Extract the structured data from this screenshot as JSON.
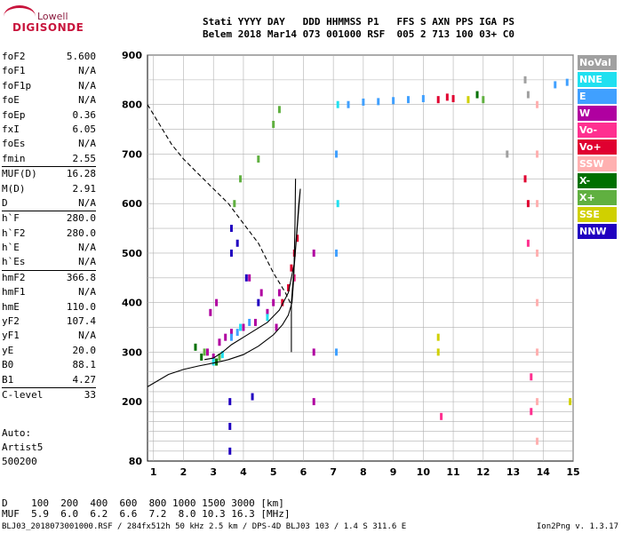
{
  "logo": {
    "line1": "Lowell",
    "line2": "DIGISONDE"
  },
  "header": {
    "line1": "Stati YYYY DAY   DDD HHMMSS P1   FFS S AXN PPS IGA PS",
    "line2": "Belem 2018 Mar14 073 001000 RSF  005 2 713 100 03+ C0"
  },
  "params": [
    {
      "name": "foF2",
      "value": "5.600"
    },
    {
      "name": "foF1",
      "value": "N/A"
    },
    {
      "name": "foF1p",
      "value": "N/A"
    },
    {
      "name": "foE",
      "value": "N/A"
    },
    {
      "name": "foEp",
      "value": "0.36"
    },
    {
      "name": "fxI",
      "value": "6.05"
    },
    {
      "name": "foEs",
      "value": "N/A"
    },
    {
      "name": "fmin",
      "value": "2.55"
    },
    {
      "name": "MUF(D)",
      "value": "16.28",
      "sep": true
    },
    {
      "name": "M(D)",
      "value": "2.91"
    },
    {
      "name": "D",
      "value": "N/A"
    },
    {
      "name": "h`F",
      "value": "280.0",
      "sep": true
    },
    {
      "name": "h`F2",
      "value": "280.0"
    },
    {
      "name": "h`E",
      "value": "N/A"
    },
    {
      "name": "h`Es",
      "value": "N/A"
    },
    {
      "name": "hmF2",
      "value": "366.8",
      "sep": true
    },
    {
      "name": "hmF1",
      "value": "N/A"
    },
    {
      "name": "hmE",
      "value": "110.0"
    },
    {
      "name": "yF2",
      "value": "107.4"
    },
    {
      "name": "yF1",
      "value": "N/A"
    },
    {
      "name": "yE",
      "value": "20.0"
    },
    {
      "name": "B0",
      "value": "88.1"
    },
    {
      "name": "B1",
      "value": "4.27"
    },
    {
      "name": "C-level",
      "value": "33",
      "sep": true
    }
  ],
  "auto": {
    "line1": "Auto:",
    "line2": "Artist5",
    "line3": "500200"
  },
  "legend": [
    {
      "label": "NoVal",
      "color": "#a0a0a0"
    },
    {
      "label": "NNE",
      "color": "#20e0f0"
    },
    {
      "label": "E",
      "color": "#40a0ff"
    },
    {
      "label": "W",
      "color": "#b000a0"
    },
    {
      "label": "Vo-",
      "color": "#ff3090"
    },
    {
      "label": "Vo+",
      "color": "#e00030"
    },
    {
      "label": "SSW",
      "color": "#ffb0b0"
    },
    {
      "label": "X-",
      "color": "#007000"
    },
    {
      "label": "X+",
      "color": "#60b040"
    },
    {
      "label": "SSE",
      "color": "#d0d000"
    },
    {
      "label": "NNW",
      "color": "#2000c0"
    }
  ],
  "bottom": {
    "d_line": "D    100  200  400  600  800 1000 1500 3000 [km]",
    "muf_line": "MUF  5.9  6.0  6.2  6.6  7.2  8.0 10.3 16.3 [MHz]",
    "footer": "BLJ03_2018073001000.RSF / 284fx512h 50 kHz 2.5 km / DPS-4D BLJ03 103 / 1.4 S 311.6 E",
    "version": "Ion2Png v. 1.3.17"
  },
  "chart_data": {
    "type": "scatter",
    "title": "",
    "xlabel": "",
    "ylabel": "",
    "xlim": [
      0.8,
      15
    ],
    "ylim": [
      80,
      900
    ],
    "xticks": [
      1,
      2,
      3,
      4,
      5,
      6,
      7,
      8,
      9,
      10,
      11,
      12,
      13,
      14,
      15
    ],
    "yticks": [
      80,
      200,
      300,
      400,
      500,
      600,
      700,
      800,
      900
    ],
    "grid": true,
    "gridlines_y": [
      100,
      120,
      140,
      160,
      180,
      200,
      220,
      240,
      260,
      280,
      300,
      350,
      400,
      450,
      500,
      550,
      600,
      650,
      700,
      750,
      800,
      850,
      900
    ],
    "series": [
      {
        "name": "W",
        "color": "#b000a0",
        "points": [
          [
            2.8,
            300
          ],
          [
            3.0,
            290
          ],
          [
            3.2,
            320
          ],
          [
            3.4,
            330
          ],
          [
            3.6,
            340
          ],
          [
            4.0,
            350
          ],
          [
            4.4,
            360
          ],
          [
            4.8,
            380
          ],
          [
            5.0,
            400
          ],
          [
            5.2,
            420
          ],
          [
            2.9,
            380
          ],
          [
            3.1,
            400
          ],
          [
            4.2,
            450
          ],
          [
            4.6,
            420
          ],
          [
            5.1,
            350
          ],
          [
            6.35,
            500
          ],
          [
            6.35,
            300
          ],
          [
            6.35,
            200
          ]
        ]
      },
      {
        "name": "Vo+",
        "color": "#e00030",
        "points": [
          [
            5.3,
            400
          ],
          [
            5.5,
            430
          ],
          [
            5.6,
            470
          ],
          [
            5.7,
            500
          ],
          [
            5.8,
            530
          ],
          [
            10.5,
            810
          ],
          [
            10.8,
            815
          ],
          [
            11.0,
            812
          ],
          [
            13.4,
            650
          ],
          [
            13.5,
            600
          ]
        ]
      },
      {
        "name": "E",
        "color": "#40a0ff",
        "points": [
          [
            7.5,
            800
          ],
          [
            8.0,
            805
          ],
          [
            8.5,
            806
          ],
          [
            9.0,
            808
          ],
          [
            9.5,
            810
          ],
          [
            10.0,
            812
          ],
          [
            3.6,
            330
          ],
          [
            3.8,
            340
          ],
          [
            4.2,
            360
          ],
          [
            7.1,
            700
          ],
          [
            7.1,
            500
          ],
          [
            7.1,
            300
          ],
          [
            14.4,
            840
          ],
          [
            14.8,
            845
          ]
        ]
      },
      {
        "name": "NNE",
        "color": "#20e0f0",
        "points": [
          [
            3.0,
            280
          ],
          [
            3.3,
            295
          ],
          [
            3.9,
            350
          ],
          [
            4.8,
            370
          ],
          [
            7.15,
            800
          ],
          [
            7.15,
            600
          ]
        ]
      },
      {
        "name": "X+",
        "color": "#60b040",
        "points": [
          [
            2.7,
            300
          ],
          [
            3.2,
            290
          ],
          [
            3.7,
            600
          ],
          [
            3.9,
            650
          ],
          [
            4.5,
            690
          ],
          [
            5.0,
            760
          ],
          [
            5.2,
            790
          ],
          [
            12.0,
            810
          ]
        ]
      },
      {
        "name": "NNW",
        "color": "#2000c0",
        "points": [
          [
            3.55,
            200
          ],
          [
            3.55,
            150
          ],
          [
            3.55,
            100
          ],
          [
            3.6,
            500
          ],
          [
            3.6,
            550
          ],
          [
            3.8,
            520
          ],
          [
            4.1,
            450
          ],
          [
            4.3,
            210
          ],
          [
            4.5,
            400
          ]
        ]
      },
      {
        "name": "SSW",
        "color": "#ffb0b0",
        "points": [
          [
            13.8,
            800
          ],
          [
            13.8,
            700
          ],
          [
            13.8,
            600
          ],
          [
            13.8,
            500
          ],
          [
            13.8,
            400
          ],
          [
            13.8,
            300
          ],
          [
            13.8,
            200
          ],
          [
            13.8,
            120
          ]
        ]
      },
      {
        "name": "SSE",
        "color": "#d0d000",
        "points": [
          [
            10.5,
            330
          ],
          [
            10.5,
            300
          ],
          [
            11.5,
            810
          ],
          [
            14.9,
            200
          ]
        ]
      },
      {
        "name": "X-",
        "color": "#007000",
        "points": [
          [
            2.4,
            310
          ],
          [
            2.6,
            290
          ],
          [
            3.1,
            280
          ],
          [
            11.8,
            820
          ]
        ]
      },
      {
        "name": "Vo-",
        "color": "#ff3090",
        "points": [
          [
            13.5,
            520
          ],
          [
            13.6,
            250
          ],
          [
            13.6,
            180
          ],
          [
            10.6,
            170
          ],
          [
            5.7,
            450
          ]
        ]
      },
      {
        "name": "NoVal",
        "color": "#a0a0a0",
        "points": [
          [
            13.4,
            850
          ],
          [
            13.5,
            820
          ],
          [
            12.8,
            700
          ]
        ]
      }
    ],
    "curves": [
      {
        "name": "profile",
        "style": "solid",
        "points": [
          [
            0.8,
            230
          ],
          [
            1.5,
            255
          ],
          [
            2.0,
            265
          ],
          [
            2.5,
            272
          ],
          [
            3.0,
            278
          ],
          [
            3.5,
            285
          ],
          [
            4.0,
            295
          ],
          [
            4.5,
            312
          ],
          [
            5.0,
            335
          ],
          [
            5.3,
            355
          ],
          [
            5.5,
            375
          ],
          [
            5.62,
            400
          ],
          [
            5.68,
            450
          ],
          [
            5.7,
            500
          ],
          [
            5.72,
            560
          ],
          [
            5.74,
            650
          ]
        ]
      },
      {
        "name": "trace",
        "style": "solid",
        "points": [
          [
            2.7,
            285
          ],
          [
            3.0,
            288
          ],
          [
            3.3,
            300
          ],
          [
            3.6,
            315
          ],
          [
            4.0,
            330
          ],
          [
            4.4,
            345
          ],
          [
            4.8,
            360
          ],
          [
            5.2,
            385
          ],
          [
            5.5,
            420
          ],
          [
            5.7,
            480
          ],
          [
            5.8,
            560
          ],
          [
            5.85,
            600
          ],
          [
            5.9,
            630
          ],
          [
            5.6,
            400
          ],
          [
            5.6,
            300
          ]
        ]
      },
      {
        "name": "muf",
        "style": "dashed",
        "points": [
          [
            0.8,
            800
          ],
          [
            1.2,
            760
          ],
          [
            1.6,
            720
          ],
          [
            2.0,
            690
          ],
          [
            2.5,
            660
          ],
          [
            3.0,
            630
          ],
          [
            3.5,
            600
          ],
          [
            4.0,
            560
          ],
          [
            4.5,
            520
          ],
          [
            5.0,
            460
          ],
          [
            5.4,
            420
          ],
          [
            5.6,
            395
          ]
        ]
      }
    ]
  }
}
